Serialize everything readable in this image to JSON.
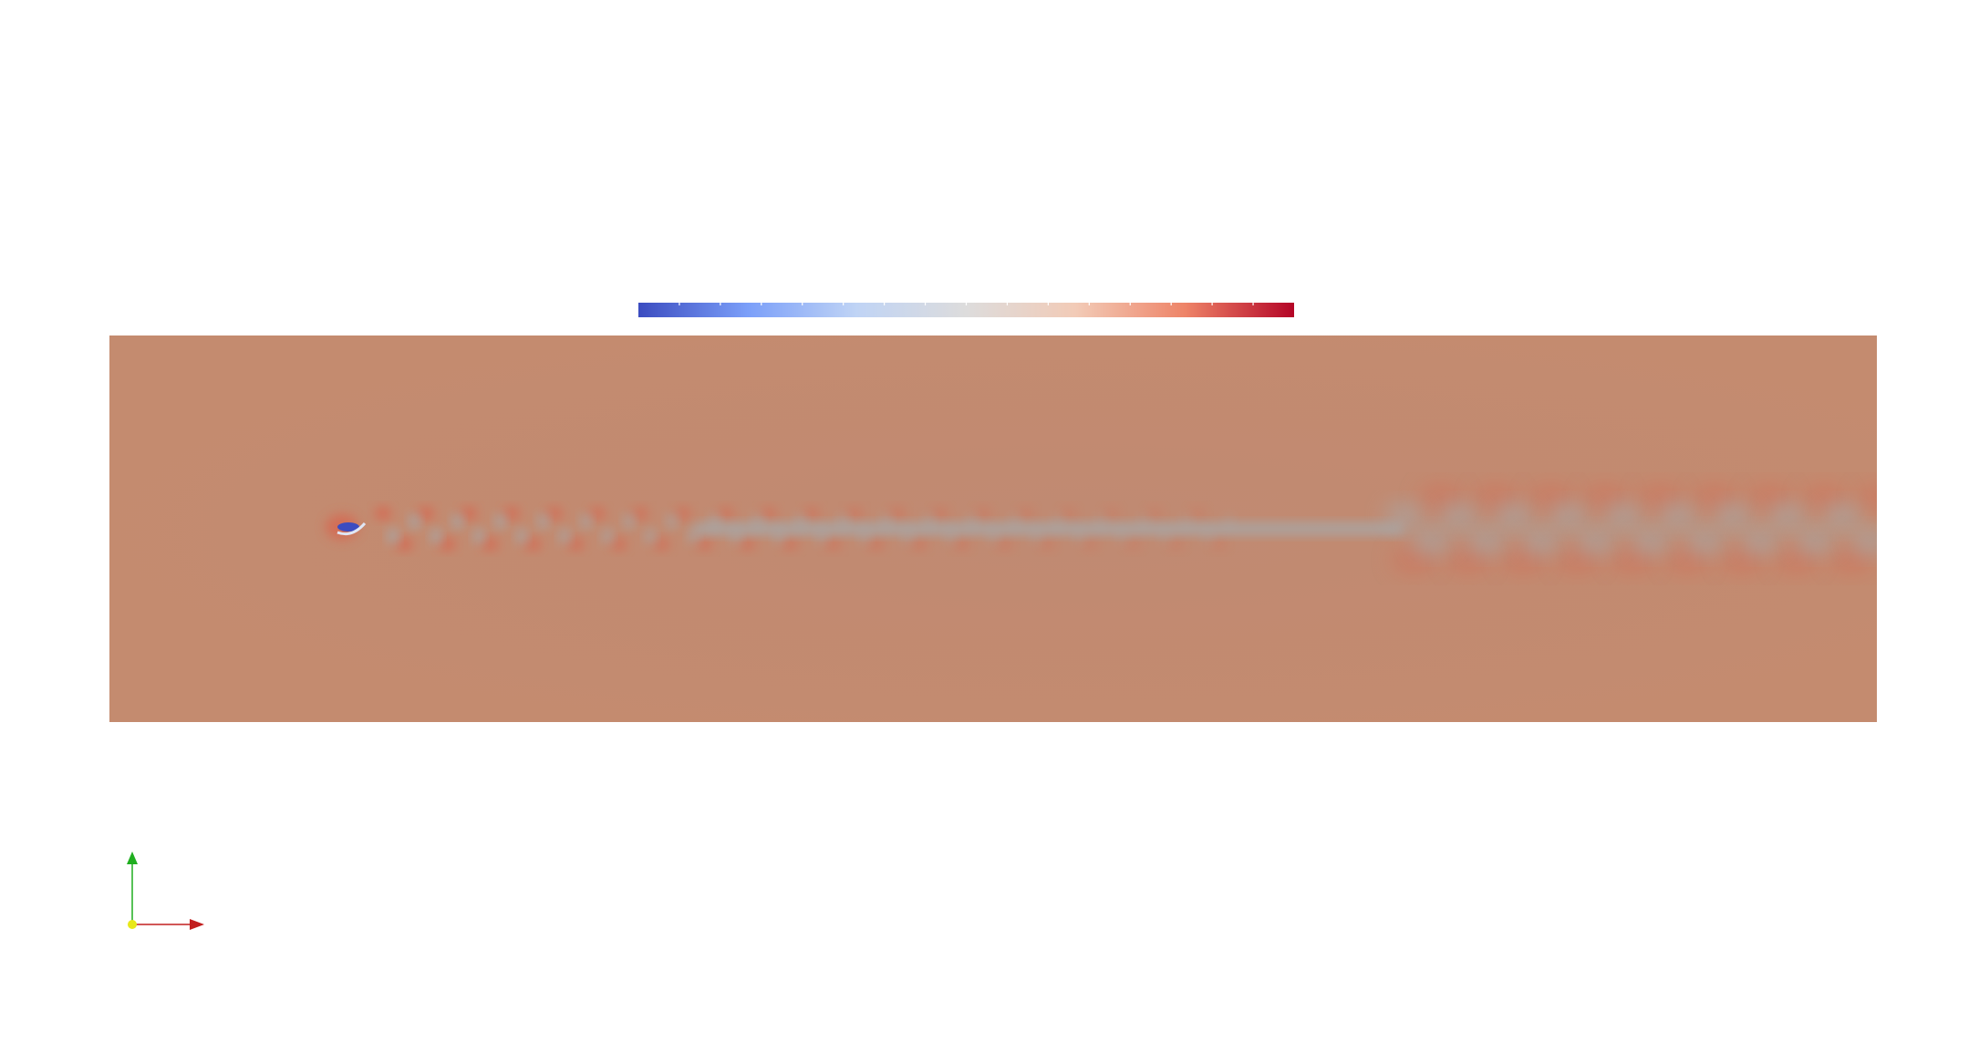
{
  "view": {
    "background": "#ffffff",
    "field_base_color": "#c38b70"
  },
  "colorbar": {
    "colormap": "cool-to-warm",
    "stops": [
      "#3b4cc0",
      "#7b9ff9",
      "#c0d4f5",
      "#dddcdc",
      "#f2cbb7",
      "#ee8468",
      "#b40426"
    ],
    "tick_count": 16
  },
  "field": {
    "wake_color": "#a7a7a7",
    "positive_lobe_color": "#d56a52",
    "negative_core_color": "#3b4cc0"
  },
  "axes": {
    "x_color": "#c21e1e",
    "y_color": "#1fae1f",
    "origin_color": "#e8e81a"
  }
}
